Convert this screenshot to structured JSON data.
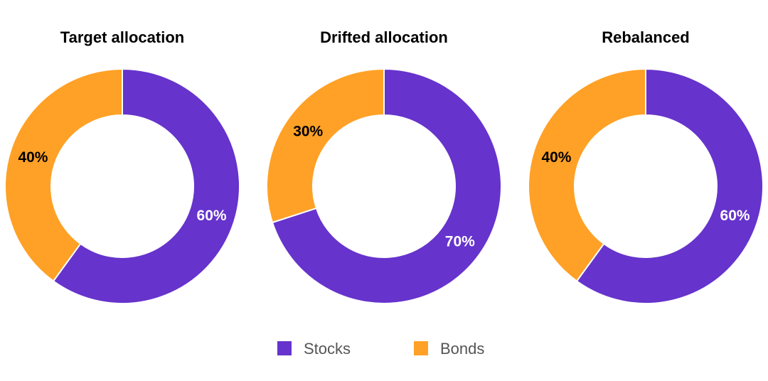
{
  "chart_data": [
    {
      "type": "pie",
      "title": "Target allocation",
      "categories": [
        "Stocks",
        "Bonds"
      ],
      "values": [
        60,
        40
      ],
      "value_labels": [
        "60%",
        "40%"
      ]
    },
    {
      "type": "pie",
      "title": "Drifted allocation",
      "categories": [
        "Stocks",
        "Bonds"
      ],
      "values": [
        70,
        30
      ],
      "value_labels": [
        "70%",
        "30%"
      ]
    },
    {
      "type": "pie",
      "title": "Rebalanced",
      "categories": [
        "Stocks",
        "Bonds"
      ],
      "values": [
        60,
        40
      ],
      "value_labels": [
        "60%",
        "40%"
      ]
    }
  ],
  "legend": {
    "placement": "bottom",
    "items": [
      {
        "label": "Stocks",
        "color": "#6633CC"
      },
      {
        "label": "Bonds",
        "color": "#FFA126"
      }
    ]
  },
  "style": {
    "donut": true
  }
}
